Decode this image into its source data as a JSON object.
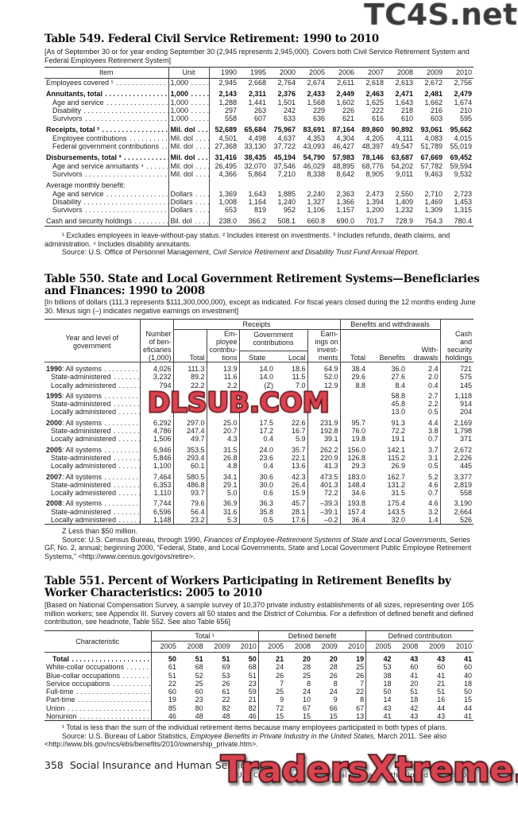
{
  "t549": {
    "title": "Table 549. Federal Civil Service Retirement: 1990 to 2010",
    "note": "[As of September 30 or for year ending September 30 (2,945 represents 2,945,000). Covers both Civil Service Retirement System and Federal Employees Retirement System]",
    "head_item": "Item",
    "head_unit": "Unit",
    "years": [
      "1990",
      "1995",
      "2000",
      "2005",
      "2006",
      "2007",
      "2008",
      "2009",
      "2010"
    ],
    "rows": [
      {
        "label": "Employees covered ¹",
        "unit": "1,000",
        "v": [
          "2,945",
          "2,668",
          "2,764",
          "2,674",
          "2,611",
          "2,618",
          "2,613",
          "2,672",
          "2,756"
        ]
      },
      {
        "label": "Annuitants, total",
        "unit": "1,000",
        "bold": true,
        "gap": true,
        "v": [
          "2,143",
          "2,311",
          "2,376",
          "2,433",
          "2,449",
          "2,463",
          "2,471",
          "2,481",
          "2,479"
        ]
      },
      {
        "label": "Age and service",
        "unit": "1,000",
        "indent": true,
        "v": [
          "1,288",
          "1,441",
          "1,501",
          "1,568",
          "1,602",
          "1,625",
          "1,643",
          "1,662",
          "1,674"
        ]
      },
      {
        "label": "Disability",
        "unit": "1,000",
        "indent": true,
        "v": [
          "297",
          "263",
          "242",
          "229",
          "226",
          "222",
          "218",
          "216",
          "210"
        ]
      },
      {
        "label": "Survivors",
        "unit": "1,000",
        "indent": true,
        "v": [
          "558",
          "607",
          "633",
          "636",
          "621",
          "616",
          "610",
          "603",
          "595"
        ]
      },
      {
        "label": "Receipts, total ²",
        "unit": "Mil. dol",
        "bold": true,
        "gap": true,
        "v": [
          "52,689",
          "65,684",
          "75,967",
          "83,691",
          "87,164",
          "89,860",
          "90,892",
          "93,061",
          "95,662"
        ]
      },
      {
        "label": "Employee contributions",
        "unit": "Mil. dol",
        "indent": true,
        "v": [
          "4,501",
          "4,498",
          "4,637",
          "4,353",
          "4,304",
          "4,205",
          "4,111",
          "4,083",
          "4,015"
        ]
      },
      {
        "label": "Federal government contributions",
        "unit": "Mil. dol",
        "indent": true,
        "v": [
          "27,368",
          "33,130",
          "37,722",
          "43,093",
          "46,427",
          "48,397",
          "49,547",
          "51,789",
          "55,019"
        ]
      },
      {
        "label": "Disbursements, total ³",
        "unit": "Mil. dol",
        "bold": true,
        "gap": true,
        "v": [
          "31,416",
          "38,435",
          "45,194",
          "54,790",
          "57,983",
          "78,146",
          "63,687",
          "67,669",
          "69,452"
        ]
      },
      {
        "label": "Age and service annuitants ⁴",
        "unit": "Mil. dol",
        "indent": true,
        "v": [
          "26,495",
          "32,070",
          "37,546",
          "46,029",
          "48,895",
          "68,776",
          "54,202",
          "57,782",
          "59,594"
        ]
      },
      {
        "label": "Survivors",
        "unit": "Mil. dol",
        "indent": true,
        "v": [
          "4,366",
          "5,864",
          "7,210",
          "8,338",
          "8,642",
          "8,905",
          "9,011",
          "9,463",
          "9,532"
        ]
      },
      {
        "label": "Average monthly benefit:",
        "unit": "",
        "gap": true,
        "noleader": true,
        "v": [
          "",
          "",
          "",
          "",
          "",
          "",
          "",
          "",
          ""
        ]
      },
      {
        "label": "Age and service",
        "unit": "Dollars",
        "indent": true,
        "v": [
          "1,369",
          "1,643",
          "1,885",
          "2,240",
          "2,363",
          "2,473",
          "2,550",
          "2,710",
          "2,723"
        ]
      },
      {
        "label": "Disability",
        "unit": "Dollars",
        "indent": true,
        "v": [
          "1,008",
          "1,164",
          "1,240",
          "1,327",
          "1,366",
          "1,394",
          "1,409",
          "1,469",
          "1,453"
        ]
      },
      {
        "label": "Survivors",
        "unit": "Dollars",
        "indent": true,
        "v": [
          "653",
          "819",
          "952",
          "1,106",
          "1,157",
          "1,200",
          "1,232",
          "1,309",
          "1,315"
        ]
      },
      {
        "label": "Cash and security holdings",
        "unit": "Bil. dol",
        "gap": true,
        "v": [
          "238.0",
          "366.2",
          "508.1",
          "660.8",
          "690.0",
          "701.7",
          "728.9",
          "754.3",
          "780.4"
        ]
      }
    ],
    "footnote1": "¹ Excludes employees in leave-without-pay status. ² Includes interest on investments. ³ Includes refunds, death claims, and",
    "footnote2": "administration. ⁴ Includes disability annuitants.",
    "source_prefix": "Source: U.S. Office of Personnel Management, ",
    "source_italic": "Civil Service Retirement and Disability Trust Fund Annual Report."
  },
  "t550": {
    "title1": "Table 550. State and Local Government Retirement Systems—Beneficiaries",
    "title2": "and Finances: 1990 to 2008",
    "note": "[In billions of dollars (111.3 represents $111,300,000,000), except as indicated. For fiscal years closed during the 12 months ending June 30. Minus sign (–) indicates negative earnings on investment]",
    "h": {
      "year_level": "Year and level of government",
      "beneficiaries": "Number of ben-eficiaries (1,000)",
      "receipts": "Receipts",
      "total": "Total",
      "employee": "Em-ployee contribu-tions",
      "govt": "Government contributions",
      "state": "State",
      "local": "Local",
      "earnings": "Earn-ings on invest-ments",
      "bw": "Benefits and withdrawals",
      "bw_total": "Total",
      "benefits": "Benefits",
      "withdrawals": "With-drawals",
      "cash": "Cash and security holdings"
    },
    "groups": [
      {
        "year": "1990",
        "rows": [
          {
            "label": ": All systems",
            "v": [
              "4,026",
              "111.3",
              "13.9",
              "14.0",
              "18.6",
              "64.9",
              "38.4",
              "36.0",
              "2.4",
              "721"
            ]
          },
          {
            "label": "State-administered",
            "v": [
              "3,232",
              "89.2",
              "11.6",
              "14.0",
              "11.5",
              "52.0",
              "29.6",
              "27.6",
              "2.0",
              "575"
            ]
          },
          {
            "label": "Locally administered",
            "v": [
              "794",
              "22.2",
              "2.2",
              "(Z)",
              "7.0",
              "12.9",
              "8.8",
              "8.4",
              "0.4",
              "145"
            ]
          }
        ]
      },
      {
        "year": "1995",
        "rows": [
          {
            "label": ": All systems",
            "v": [
              "",
              "",
              "",
              "",
              "",
              "",
              "",
              "58.8",
              "2.7",
              "1,118"
            ]
          },
          {
            "label": "State-administered",
            "v": [
              "",
              "",
              "",
              "",
              "",
              "",
              "",
              "45.8",
              "2.2",
              "914"
            ]
          },
          {
            "label": "Locally administered",
            "v": [
              "",
              "",
              "",
              "",
              "",
              "",
              "",
              "13.0",
              "0.5",
              "204"
            ]
          }
        ]
      },
      {
        "year": "2000",
        "rows": [
          {
            "label": ": All systems",
            "v": [
              "6,292",
              "297.0",
              "25.0",
              "17.5",
              "22.6",
              "231.9",
              "95.7",
              "91.3",
              "4.4",
              "2,169"
            ]
          },
          {
            "label": "State-administered",
            "v": [
              "4,786",
              "247.4",
              "20.7",
              "17.2",
              "16.7",
              "192.8",
              "76.0",
              "72.2",
              "3.8",
              "1,798"
            ]
          },
          {
            "label": "Locally administered",
            "v": [
              "1,506",
              "49.7",
              "4.3",
              "0.4",
              "5.9",
              "39.1",
              "19.8",
              "19.1",
              "0.7",
              "371"
            ]
          }
        ]
      },
      {
        "year": "2005",
        "rows": [
          {
            "label": ": All systems",
            "v": [
              "6,946",
              "353.5",
              "31.5",
              "24.0",
              "35.7",
              "262.2",
              "156.0",
              "142.1",
              "3.7",
              "2,672"
            ]
          },
          {
            "label": "State-administered",
            "v": [
              "5,846",
              "293.4",
              "26.8",
              "23.6",
              "22.1",
              "220.9",
              "126.8",
              "115.2",
              "3.1",
              "2,226"
            ]
          },
          {
            "label": "Locally administered",
            "v": [
              "1,100",
              "60.1",
              "4.8",
              "0.4",
              "13.6",
              "41.3",
              "29.3",
              "26.9",
              "0.5",
              "445"
            ]
          }
        ]
      },
      {
        "year": "2007",
        "rows": [
          {
            "label": ": All systems",
            "v": [
              "7,464",
              "580.5",
              "34.1",
              "30.6",
              "42.3",
              "473.5",
              "183.0",
              "162.7",
              "5.2",
              "3,377"
            ]
          },
          {
            "label": "State-administered",
            "v": [
              "6,353",
              "486.8",
              "29.1",
              "30.0",
              "26.4",
              "401.3",
              "148.4",
              "131.2",
              "4.6",
              "2,819"
            ]
          },
          {
            "label": "Locally administered",
            "v": [
              "1,110",
              "93.7",
              "5.0",
              "0.6",
              "15.9",
              "72.2",
              "34.6",
              "31.5",
              "0.7",
              "558"
            ]
          }
        ]
      },
      {
        "year": "2008",
        "rows": [
          {
            "label": ": All systems",
            "v": [
              "7,744",
              "79.6",
              "36.9",
              "36.3",
              "45.7",
              "–39.3",
              "193.8",
              "175.4",
              "4.6",
              "3,190"
            ]
          },
          {
            "label": "State-administered",
            "v": [
              "6,596",
              "56.4",
              "31.6",
              "35.8",
              "28.1",
              "–39.1",
              "157.4",
              "143.5",
              "3.2",
              "2,664"
            ]
          },
          {
            "label": "Locally administered",
            "v": [
              "1,148",
              "23.2",
              "5.3",
              "0.5",
              "17.6",
              "–0.2",
              "36.4",
              "32.0",
              "1.4",
              "526"
            ]
          }
        ]
      }
    ],
    "z_note": "Z Less than $50 million.",
    "source_prefix": "Source: U.S. Census Bureau, through 1990, ",
    "source_italic": "Finances of Employee-Retirement Systems of State and Local Governments,",
    "source_suffix": " Series GF, No. 2, annual; beginning 2000, “Federal, State, and Local Governments, State and Local Government Public Employee Retirement Systems,” <http://www.census.gov/govs/retire>."
  },
  "t551": {
    "title1": "Table 551. Percent of Workers Participating in Retirement Benefits by",
    "title2": "Worker Characteristics: 2005 to 2010",
    "note": "[Based on National Compensation Survey, a sample survey of 10,370 private industry establishments of all sizes, representing over 105 million workers; see Appendix III. Survey covers all 50 states and the District of Columbia. For a definition of defined benefit and defined contribution, see headnote, Table 552. See also Table 656]",
    "h_char": "Characteristic",
    "h_total": "Total ¹",
    "h_db": "Defined benefit",
    "h_dc": "Defined contribution",
    "years": [
      "2005",
      "2008",
      "2009",
      "2010"
    ],
    "rows": [
      {
        "label": "Total",
        "bold": true,
        "v": [
          "50",
          "51",
          "51",
          "50",
          "21",
          "20",
          "20",
          "19",
          "42",
          "43",
          "43",
          "41"
        ]
      },
      {
        "label": "White-collar occupations",
        "v": [
          "61",
          "68",
          "69",
          "68",
          "24",
          "28",
          "28",
          "25",
          "53",
          "60",
          "60",
          "60"
        ]
      },
      {
        "label": "Blue-collar occupations",
        "v": [
          "51",
          "52",
          "53",
          "51",
          "26",
          "25",
          "26",
          "26",
          "38",
          "41",
          "41",
          "40"
        ]
      },
      {
        "label": "Service occupations",
        "v": [
          "22",
          "25",
          "26",
          "23",
          "7",
          "8",
          "8",
          "7",
          "18",
          "20",
          "21",
          "18"
        ]
      },
      {
        "label": "Full-time",
        "v": [
          "60",
          "60",
          "61",
          "59",
          "25",
          "24",
          "24",
          "22",
          "50",
          "51",
          "51",
          "50"
        ]
      },
      {
        "label": "Part-time",
        "v": [
          "19",
          "23",
          "22",
          "21",
          "9",
          "10",
          "9",
          "8",
          "14",
          "18",
          "16",
          "15"
        ]
      },
      {
        "label": "Union",
        "v": [
          "85",
          "80",
          "82",
          "82",
          "72",
          "67",
          "66",
          "67",
          "43",
          "42",
          "44",
          "44"
        ]
      },
      {
        "label": "Nonunion",
        "v": [
          "46",
          "48",
          "48",
          "46",
          "15",
          "15",
          "15",
          "13",
          "41",
          "43",
          "43",
          "41"
        ]
      }
    ],
    "footnote": "¹ Total is less than the sum of the individual retirement items because many employees participated in both types of plans.",
    "source_prefix": "Source: U.S. Bureau of Labor Statistics, ",
    "source_italic": "Employee Benefits in Private Industry in the United States,",
    "source_suffix": " March 2011. See also <http://www.bls.gov/ncs/ebs/benefits/2010/ownership_private.htm>."
  },
  "footer": {
    "page": "358",
    "section": "Social Insurance and Human Services",
    "publication": "U.S. Census Bureau, Statistical Abstract of the United States: 2012"
  },
  "watermarks": {
    "top": "TC4S.net",
    "middle": "DLSUB.COM",
    "bottom": "TradersXtreme.com",
    "color_red": "#d9434f"
  }
}
